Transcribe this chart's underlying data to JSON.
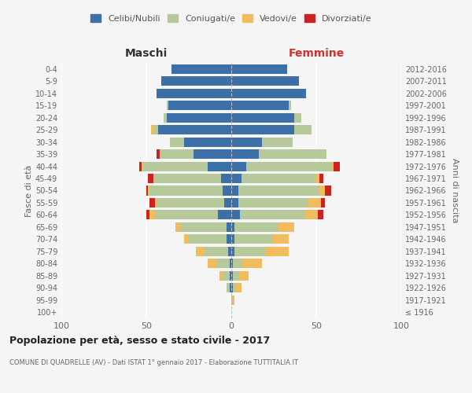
{
  "age_groups": [
    "100+",
    "95-99",
    "90-94",
    "85-89",
    "80-84",
    "75-79",
    "70-74",
    "65-69",
    "60-64",
    "55-59",
    "50-54",
    "45-49",
    "40-44",
    "35-39",
    "30-34",
    "25-29",
    "20-24",
    "15-19",
    "10-14",
    "5-9",
    "0-4"
  ],
  "birth_years": [
    "≤ 1916",
    "1917-1921",
    "1922-1926",
    "1927-1931",
    "1932-1936",
    "1937-1941",
    "1942-1946",
    "1947-1951",
    "1952-1956",
    "1957-1961",
    "1962-1966",
    "1967-1971",
    "1972-1976",
    "1977-1981",
    "1982-1986",
    "1987-1991",
    "1992-1996",
    "1997-2001",
    "2002-2006",
    "2007-2011",
    "2012-2016"
  ],
  "male": {
    "celibi": [
      0,
      0,
      1,
      1,
      1,
      2,
      3,
      3,
      8,
      4,
      5,
      6,
      14,
      22,
      28,
      43,
      38,
      37,
      44,
      41,
      35
    ],
    "coniugati": [
      0,
      0,
      2,
      4,
      8,
      14,
      22,
      27,
      37,
      40,
      43,
      40,
      38,
      20,
      8,
      3,
      2,
      1,
      0,
      0,
      0
    ],
    "vedovi": [
      0,
      0,
      0,
      2,
      5,
      5,
      3,
      3,
      3,
      1,
      1,
      0,
      1,
      0,
      0,
      1,
      0,
      0,
      0,
      0,
      0
    ],
    "divorziati": [
      0,
      0,
      0,
      0,
      0,
      0,
      0,
      0,
      2,
      3,
      1,
      3,
      1,
      2,
      0,
      0,
      0,
      0,
      0,
      0,
      0
    ]
  },
  "female": {
    "nubili": [
      0,
      0,
      1,
      1,
      1,
      2,
      2,
      2,
      5,
      4,
      4,
      6,
      9,
      16,
      18,
      37,
      37,
      34,
      44,
      40,
      33
    ],
    "coniugate": [
      0,
      1,
      2,
      3,
      5,
      18,
      22,
      26,
      38,
      41,
      48,
      44,
      50,
      40,
      18,
      10,
      4,
      1,
      0,
      0,
      0
    ],
    "vedove": [
      0,
      1,
      3,
      6,
      12,
      14,
      10,
      9,
      8,
      8,
      3,
      2,
      1,
      0,
      0,
      0,
      0,
      0,
      0,
      0,
      0
    ],
    "divorziate": [
      0,
      0,
      0,
      0,
      0,
      0,
      0,
      0,
      3,
      2,
      4,
      2,
      4,
      0,
      0,
      0,
      0,
      0,
      0,
      0,
      0
    ]
  },
  "colors": {
    "celibi": "#3d6fa8",
    "coniugati": "#b5c99a",
    "vedovi": "#f0bc5e",
    "divorziati": "#cc2222"
  },
  "xlim": 100,
  "title": "Popolazione per età, sesso e stato civile - 2017",
  "subtitle": "COMUNE DI QUADRELLE (AV) - Dati ISTAT 1° gennaio 2017 - Elaborazione TUTTITALIA.IT",
  "ylabel_left": "Fasce di età",
  "ylabel_right": "Anni di nascita",
  "xlabel_left": "Maschi",
  "xlabel_right": "Femmine",
  "legend_labels": [
    "Celibi/Nubili",
    "Coniugati/e",
    "Vedovi/e",
    "Divorziati/e"
  ],
  "background_color": "#f5f5f5"
}
